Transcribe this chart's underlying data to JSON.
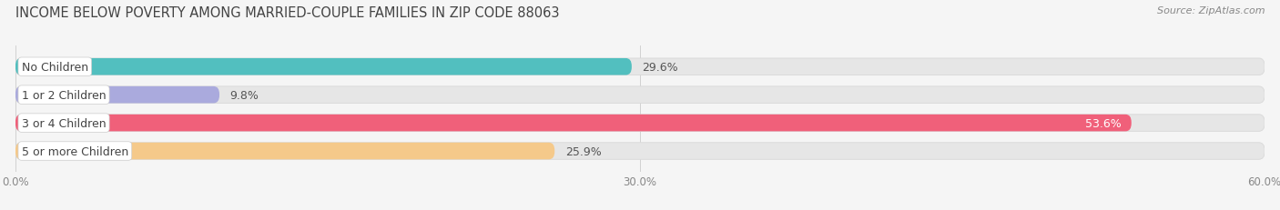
{
  "title": "INCOME BELOW POVERTY AMONG MARRIED-COUPLE FAMILIES IN ZIP CODE 88063",
  "source": "Source: ZipAtlas.com",
  "categories": [
    "No Children",
    "1 or 2 Children",
    "3 or 4 Children",
    "5 or more Children"
  ],
  "values": [
    29.6,
    9.8,
    53.6,
    25.9
  ],
  "bar_colors": [
    "#52BFBF",
    "#AAAADD",
    "#F0607A",
    "#F5C98A"
  ],
  "label_colors": [
    "#555555",
    "#555555",
    "#ffffff",
    "#555555"
  ],
  "xlim": [
    0,
    60
  ],
  "xtick_vals": [
    0.0,
    30.0,
    60.0
  ],
  "xtick_labels": [
    "0.0%",
    "30.0%",
    "60.0%"
  ],
  "bar_height": 0.6,
  "background_color": "#f5f5f5",
  "bar_bg_color": "#e6e6e6",
  "bar_bg_edge_color": "#d8d8d8",
  "title_fontsize": 10.5,
  "source_fontsize": 8,
  "value_fontsize": 9,
  "label_fontsize": 9,
  "tick_fontsize": 8.5,
  "cat_label_color": "#444444",
  "tick_color": "#888888"
}
